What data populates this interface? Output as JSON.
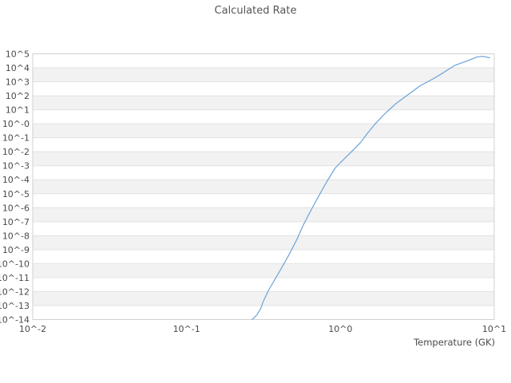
{
  "title": "Calculated Rate",
  "colors": {
    "background": "#ffffff",
    "band_stripe": "#f2f2f2",
    "band_plain": "#ffffff",
    "gridline": "#e2e2e2",
    "plot_border": "#d0d0d0",
    "line": "#6ba3d8",
    "title_text": "#555555",
    "tick_text": "#4a4a4a"
  },
  "chart_data": {
    "type": "line",
    "title": "Calculated Rate",
    "xlabel": "Temperature (GK)",
    "ylabel": "",
    "x_scale": "log",
    "y_scale": "log",
    "x_range_exponents": [
      -2,
      1
    ],
    "y_range_exponents": [
      -14,
      5
    ],
    "grid": {
      "horizontal_stripes": true,
      "vertical_gridlines": false,
      "legend": "none"
    },
    "x_ticks": {
      "labels": [
        "10^-2",
        "10^-1",
        "10^0",
        "10^1"
      ],
      "values": [
        0.01,
        0.1,
        1,
        10
      ]
    },
    "y_ticks": {
      "labels": [
        "10^5",
        "10^4",
        "10^3",
        "10^2",
        "10^1",
        "10^-0",
        "10^-1",
        "10^-2",
        "10^-3",
        "10^-4",
        "10^-5",
        "10^-6",
        "10^-7",
        "10^-8",
        "10^-9",
        "10^-10",
        "10^-11",
        "10^-12",
        "10^-13",
        "10^-14"
      ],
      "exponents": [
        5,
        4,
        3,
        2,
        1,
        0,
        -1,
        -2,
        -3,
        -4,
        -5,
        -6,
        -7,
        -8,
        -9,
        -10,
        -11,
        -12,
        -13,
        -14
      ]
    },
    "series": [
      {
        "name": "calculated rate",
        "color": "#6ba3d8",
        "T_GK": [
          0.253,
          0.27,
          0.287,
          0.304,
          0.315,
          0.343,
          0.4,
          0.454,
          0.52,
          0.575,
          0.65,
          0.73,
          0.82,
          0.925,
          1.06,
          1.18,
          1.35,
          1.5,
          1.7,
          1.97,
          2.3,
          2.82,
          3.3,
          4.0,
          4.7,
          5.55,
          6.5,
          7.78,
          8.5,
          9.35
        ],
        "log10_rate": [
          -14.23,
          -13.94,
          -13.65,
          -13.19,
          -12.7,
          -11.86,
          -10.6,
          -9.54,
          -8.3,
          -7.22,
          -6.1,
          -5.08,
          -4.1,
          -3.16,
          -2.5,
          -2.0,
          -1.35,
          -0.67,
          0.05,
          0.78,
          1.45,
          2.17,
          2.72,
          3.21,
          3.67,
          4.18,
          4.45,
          4.79,
          4.82,
          4.72
        ]
      }
    ]
  }
}
